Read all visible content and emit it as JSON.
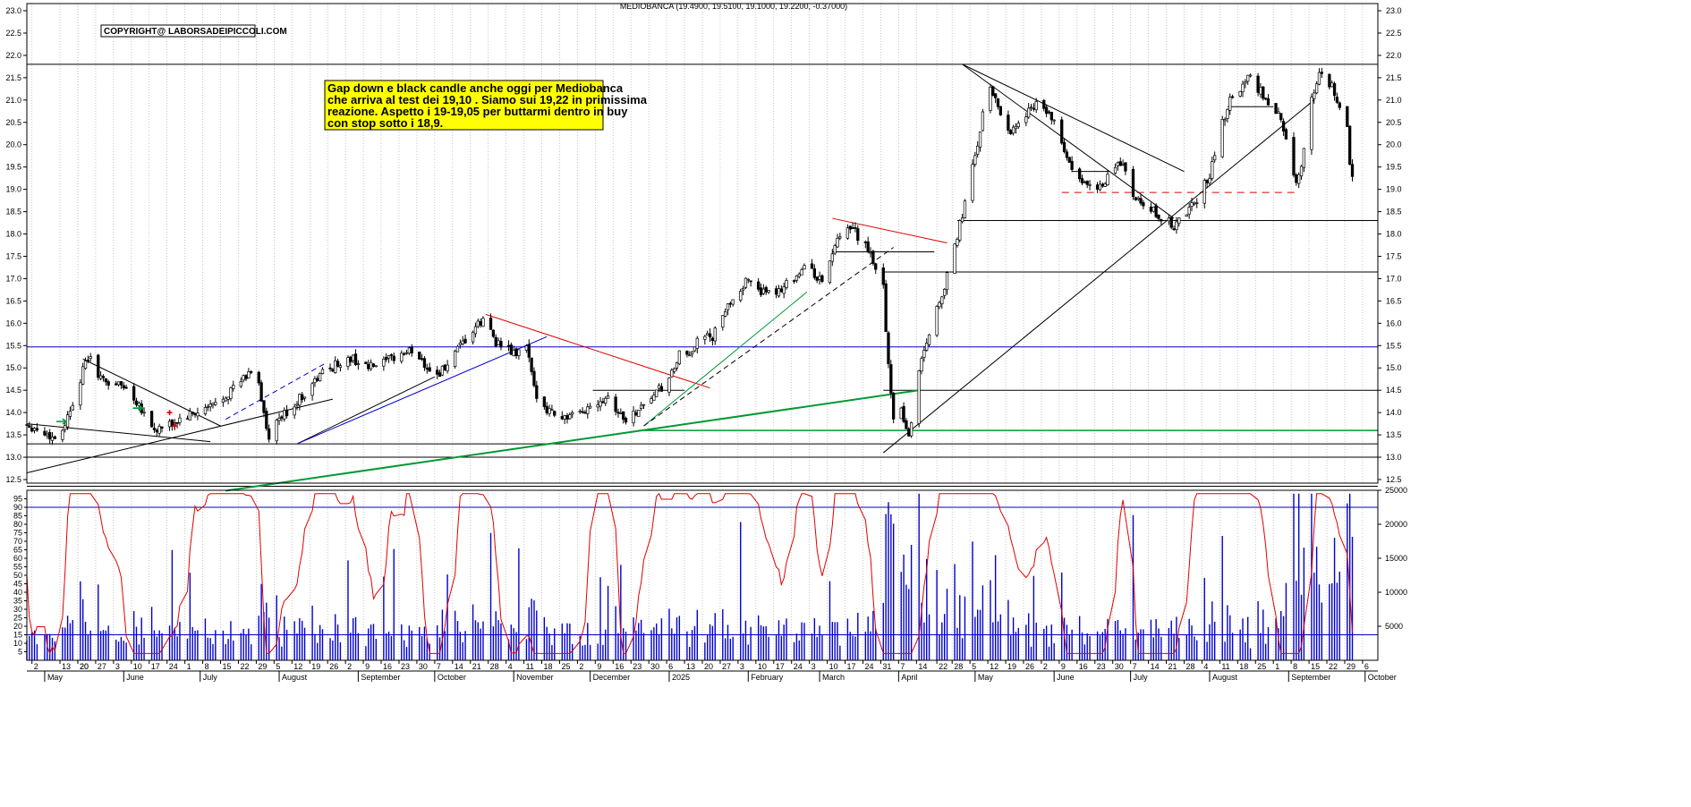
{
  "chart_data": {
    "type": "candlestick",
    "title": "MEDIOBANCA (19.4900, 19.5100, 19.1000, 19.2200, -0.37000)",
    "copyright": "COPYRIGHT@ LABORSADEIPICCOLI.COM",
    "annotation_lines": [
      "Gap down e black candle anche oggi per Mediobanca",
      "che arriva al test dei 19,10 . Siamo sui 19,22 in primissima",
      "reazione. Aspetto i 19-19,05 per buttarmi dentro in buy",
      "con stop sotto i 18,9."
    ],
    "colors": {
      "up": "#ffffff",
      "down": "#000000",
      "oscillator": "#e00000",
      "volume": "#0000cc",
      "support_blue": "#0000cc",
      "support_green": "#009933",
      "note_bg": "#ffff00",
      "resistance_red": "#e00000"
    },
    "price_axis": {
      "min": 12.5,
      "max": 23.0,
      "step": 0.5,
      "ticks": [
        "12.5",
        "13.0",
        "13.5",
        "14.0",
        "14.5",
        "15.0",
        "15.5",
        "16.0",
        "16.5",
        "17.0",
        "17.5",
        "18.0",
        "18.5",
        "19.0",
        "19.5",
        "20.0",
        "20.5",
        "21.0",
        "21.5",
        "22.0",
        "22.5",
        "23.0"
      ]
    },
    "oscillator_axis": {
      "min": 0,
      "max": 100,
      "ticks": [
        "5",
        "10",
        "15",
        "20",
        "25",
        "30",
        "35",
        "40",
        "45",
        "50",
        "55",
        "60",
        "65",
        "70",
        "75",
        "80",
        "85",
        "90",
        "95"
      ]
    },
    "volume_axis": {
      "min": 0,
      "max": 25000,
      "ticks": [
        "5000",
        "10000",
        "15000",
        "20000",
        "25000"
      ]
    },
    "oscillator_levels": [
      90,
      15
    ],
    "months": [
      {
        "label": "May",
        "day": 7
      },
      {
        "label": "June",
        "day": 38
      },
      {
        "label": "July",
        "day": 68
      },
      {
        "label": "August",
        "day": 99
      },
      {
        "label": "September",
        "day": 130
      },
      {
        "label": "October",
        "day": 160
      },
      {
        "label": "November",
        "day": 191
      },
      {
        "label": "December",
        "day": 221
      },
      {
        "label": "2025",
        "day": 252
      },
      {
        "label": "February",
        "day": 283
      },
      {
        "label": "March",
        "day": 311
      },
      {
        "label": "April",
        "day": 342
      },
      {
        "label": "May",
        "day": 372
      },
      {
        "label": "June",
        "day": 403
      },
      {
        "label": "July",
        "day": 433
      },
      {
        "label": "August",
        "day": 464
      },
      {
        "label": "September",
        "day": 495
      },
      {
        "label": "October",
        "day": 525
      }
    ],
    "day_ticks": [
      {
        "label": "2",
        "day": 2
      },
      {
        "label": "20",
        "day": 20
      },
      {
        "label": "13",
        "day": 13
      },
      {
        "label": "20",
        "day": 20
      },
      {
        "label": "27",
        "day": 27
      },
      {
        "label": "3",
        "day": 34
      },
      {
        "label": "10",
        "day": 41
      },
      {
        "label": "17",
        "day": 48
      },
      {
        "label": "24",
        "day": 55
      },
      {
        "label": "1",
        "day": 62
      },
      {
        "label": "8",
        "day": 69
      },
      {
        "label": "15",
        "day": 76
      },
      {
        "label": "22",
        "day": 83
      },
      {
        "label": "29",
        "day": 90
      },
      {
        "label": "5",
        "day": 97
      },
      {
        "label": "12",
        "day": 104
      },
      {
        "label": "19",
        "day": 111
      },
      {
        "label": "26",
        "day": 118
      },
      {
        "label": "2",
        "day": 125
      },
      {
        "label": "9",
        "day": 132
      },
      {
        "label": "16",
        "day": 139
      },
      {
        "label": "23",
        "day": 146
      },
      {
        "label": "30",
        "day": 153
      },
      {
        "label": "7",
        "day": 160
      },
      {
        "label": "14",
        "day": 167
      },
      {
        "label": "21",
        "day": 174
      },
      {
        "label": "28",
        "day": 181
      },
      {
        "label": "4",
        "day": 188
      },
      {
        "label": "11",
        "day": 195
      },
      {
        "label": "18",
        "day": 202
      },
      {
        "label": "25",
        "day": 209
      },
      {
        "label": "2",
        "day": 216
      },
      {
        "label": "9",
        "day": 223
      },
      {
        "label": "16",
        "day": 230
      },
      {
        "label": "23",
        "day": 237
      },
      {
        "label": "30",
        "day": 244
      },
      {
        "label": "6",
        "day": 251
      },
      {
        "label": "13",
        "day": 258
      },
      {
        "label": "20",
        "day": 265
      },
      {
        "label": "27",
        "day": 272
      },
      {
        "label": "3",
        "day": 279
      },
      {
        "label": "10",
        "day": 286
      },
      {
        "label": "17",
        "day": 293
      },
      {
        "label": "24",
        "day": 300
      },
      {
        "label": "3",
        "day": 307
      },
      {
        "label": "10",
        "day": 314
      },
      {
        "label": "17",
        "day": 321
      },
      {
        "label": "24",
        "day": 328
      },
      {
        "label": "31",
        "day": 335
      },
      {
        "label": "7",
        "day": 342
      },
      {
        "label": "14",
        "day": 349
      },
      {
        "label": "22",
        "day": 357
      },
      {
        "label": "28",
        "day": 363
      },
      {
        "label": "5",
        "day": 370
      },
      {
        "label": "12",
        "day": 377
      },
      {
        "label": "19",
        "day": 384
      },
      {
        "label": "26",
        "day": 391
      },
      {
        "label": "2",
        "day": 398
      },
      {
        "label": "9",
        "day": 405
      },
      {
        "label": "16",
        "day": 412
      },
      {
        "label": "23",
        "day": 419
      },
      {
        "label": "30",
        "day": 426
      },
      {
        "label": "7",
        "day": 433
      },
      {
        "label": "14",
        "day": 440
      },
      {
        "label": "21",
        "day": 447
      },
      {
        "label": "28",
        "day": 454
      },
      {
        "label": "4",
        "day": 461
      },
      {
        "label": "11",
        "day": 468
      },
      {
        "label": "18",
        "day": 475
      },
      {
        "label": "25",
        "day": 482
      },
      {
        "label": "1",
        "day": 489
      },
      {
        "label": "8",
        "day": 496
      },
      {
        "label": "15",
        "day": 503
      },
      {
        "label": "22",
        "day": 510
      },
      {
        "label": "29",
        "day": 517
      },
      {
        "label": "6",
        "day": 524
      }
    ],
    "day_range": [
      0,
      530
    ],
    "anchors": [
      [
        0,
        13.75
      ],
      [
        8,
        13.5
      ],
      [
        12,
        13.4
      ],
      [
        16,
        13.9
      ],
      [
        20,
        14.6
      ],
      [
        24,
        15.25
      ],
      [
        30,
        14.7
      ],
      [
        38,
        14.6
      ],
      [
        44,
        14.2
      ],
      [
        50,
        13.6
      ],
      [
        56,
        13.7
      ],
      [
        62,
        13.9
      ],
      [
        68,
        14.0
      ],
      [
        74,
        14.2
      ],
      [
        80,
        14.5
      ],
      [
        86,
        14.8
      ],
      [
        90,
        15.1
      ],
      [
        92,
        14.3
      ],
      [
        95,
        13.3
      ],
      [
        98,
        13.8
      ],
      [
        102,
        14.0
      ],
      [
        110,
        14.5
      ],
      [
        116,
        14.9
      ],
      [
        122,
        15.1
      ],
      [
        128,
        15.2
      ],
      [
        134,
        15.0
      ],
      [
        140,
        15.1
      ],
      [
        146,
        15.3
      ],
      [
        152,
        15.4
      ],
      [
        156,
        15.1
      ],
      [
        160,
        14.8
      ],
      [
        164,
        15.0
      ],
      [
        168,
        15.3
      ],
      [
        172,
        15.6
      ],
      [
        176,
        15.9
      ],
      [
        180,
        16.1
      ],
      [
        184,
        15.6
      ],
      [
        188,
        15.4
      ],
      [
        192,
        15.3
      ],
      [
        196,
        15.5
      ],
      [
        199,
        14.5
      ],
      [
        204,
        14.1
      ],
      [
        210,
        13.9
      ],
      [
        216,
        13.9
      ],
      [
        222,
        14.2
      ],
      [
        228,
        14.4
      ],
      [
        232,
        14.0
      ],
      [
        236,
        13.8
      ],
      [
        240,
        14.1
      ],
      [
        246,
        14.4
      ],
      [
        252,
        14.7
      ],
      [
        256,
        15.3
      ],
      [
        260,
        15.2
      ],
      [
        264,
        15.9
      ],
      [
        268,
        15.6
      ],
      [
        272,
        16.0
      ],
      [
        276,
        16.5
      ],
      [
        280,
        16.8
      ],
      [
        284,
        17.0
      ],
      [
        290,
        16.6
      ],
      [
        296,
        16.8
      ],
      [
        300,
        17.0
      ],
      [
        306,
        17.3
      ],
      [
        312,
        16.9
      ],
      [
        316,
        17.6
      ],
      [
        320,
        18.0
      ],
      [
        324,
        18.1
      ],
      [
        328,
        17.8
      ],
      [
        332,
        17.4
      ],
      [
        336,
        16.8
      ],
      [
        338,
        15.0
      ],
      [
        340,
        13.9
      ],
      [
        342,
        14.6
      ],
      [
        344,
        13.8
      ],
      [
        346,
        13.5
      ],
      [
        348,
        14.0
      ],
      [
        350,
        15.0
      ],
      [
        354,
        15.8
      ],
      [
        358,
        16.5
      ],
      [
        362,
        17.2
      ],
      [
        366,
        18.2
      ],
      [
        370,
        19.2
      ],
      [
        374,
        20.3
      ],
      [
        377,
        21.4
      ],
      [
        381,
        20.9
      ],
      [
        385,
        20.3
      ],
      [
        390,
        20.5
      ],
      [
        396,
        21.0
      ],
      [
        402,
        20.6
      ],
      [
        406,
        20.0
      ],
      [
        410,
        19.4
      ],
      [
        414,
        19.1
      ],
      [
        418,
        19.2
      ],
      [
        422,
        19.0
      ],
      [
        426,
        19.5
      ],
      [
        430,
        19.6
      ],
      [
        432,
        19.3
      ],
      [
        434,
        18.8
      ],
      [
        438,
        18.6
      ],
      [
        442,
        18.5
      ],
      [
        446,
        18.3
      ],
      [
        450,
        18.2
      ],
      [
        454,
        18.4
      ],
      [
        458,
        18.7
      ],
      [
        460,
        18.9
      ],
      [
        464,
        19.3
      ],
      [
        468,
        20.3
      ],
      [
        472,
        21.0
      ],
      [
        476,
        21.3
      ],
      [
        480,
        21.5
      ],
      [
        484,
        21.2
      ],
      [
        488,
        20.8
      ],
      [
        492,
        20.6
      ],
      [
        496,
        19.6
      ],
      [
        498,
        19.2
      ],
      [
        500,
        19.5
      ],
      [
        502,
        20.5
      ],
      [
        505,
        21.2
      ],
      [
        508,
        21.7
      ],
      [
        512,
        21.3
      ],
      [
        515,
        20.8
      ],
      [
        518,
        20.3
      ],
      [
        519,
        19.6
      ],
      [
        520,
        19.22
      ]
    ],
    "horizontal_lines": [
      {
        "price": 21.8,
        "color": "#000000",
        "from": 0,
        "to": 530,
        "width": 1
      },
      {
        "price": 18.3,
        "color": "#000000",
        "from": 365,
        "to": 530,
        "width": 1
      },
      {
        "price": 17.15,
        "color": "#000000",
        "from": 336,
        "to": 530,
        "width": 1
      },
      {
        "price": 15.47,
        "color": "#0000cc",
        "from": 0,
        "to": 530,
        "width": 1
      },
      {
        "price": 14.5,
        "color": "#000000",
        "from": 336,
        "to": 530,
        "width": 1
      },
      {
        "price": 13.6,
        "color": "#009933",
        "from": 240,
        "to": 530,
        "width": 1.5
      },
      {
        "price": 13.3,
        "color": "#000000",
        "from": 0,
        "to": 530,
        "width": 1
      },
      {
        "price": 13.0,
        "color": "#000000",
        "from": 0,
        "to": 530,
        "width": 1
      },
      {
        "price": 12.35,
        "color": "#000000",
        "from": 0,
        "to": 530,
        "width": 1
      },
      {
        "price": 14.5,
        "color": "#000000",
        "from": 222,
        "to": 258,
        "width": 1
      },
      {
        "price": 17.6,
        "color": "#000000",
        "from": 316,
        "to": 356,
        "width": 1
      },
      {
        "price": 19.4,
        "color": "#000000",
        "from": 410,
        "to": 425,
        "width": 1
      },
      {
        "price": 20.85,
        "color": "#000000",
        "from": 471,
        "to": 489,
        "width": 1
      },
      {
        "price": 18.93,
        "color": "#e00000",
        "from": 406,
        "to": 498,
        "width": 1,
        "dash": "8,6"
      }
    ],
    "trend_lines": [
      {
        "from": [
          0,
          12.65
        ],
        "to": [
          120,
          14.3
        ],
        "color": "#000000",
        "width": 1
      },
      {
        "from": [
          0,
          13.75
        ],
        "to": [
          72,
          13.35
        ],
        "color": "#000000",
        "width": 1
      },
      {
        "from": [
          22,
          15.2
        ],
        "to": [
          76,
          13.7
        ],
        "color": "#000000",
        "width": 1
      },
      {
        "from": [
          78,
          13.85
        ],
        "to": [
          117,
          15.1
        ],
        "color": "#0000cc",
        "width": 1,
        "dash": "6,4"
      },
      {
        "from": [
          106,
          13.3
        ],
        "to": [
          160,
          14.8
        ],
        "color": "#000000",
        "width": 1
      },
      {
        "from": [
          106,
          13.3
        ],
        "to": [
          204,
          15.7
        ],
        "color": "#0000cc",
        "width": 1
      },
      {
        "from": [
          78,
          12.25
        ],
        "to": [
          350,
          14.5
        ],
        "color": "#009933",
        "width": 2
      },
      {
        "from": [
          180,
          16.2
        ],
        "to": [
          268,
          14.55
        ],
        "color": "#e00000",
        "width": 1
      },
      {
        "from": [
          242,
          13.7
        ],
        "to": [
          306,
          16.7
        ],
        "color": "#009933",
        "width": 1
      },
      {
        "from": [
          242,
          13.7
        ],
        "to": [
          340,
          17.7
        ],
        "color": "#000000",
        "width": 1,
        "dash": "6,4"
      },
      {
        "from": [
          316,
          18.35
        ],
        "to": [
          361,
          17.8
        ],
        "color": "#e00000",
        "width": 1
      },
      {
        "from": [
          336,
          13.1
        ],
        "to": [
          505,
          21.0
        ],
        "color": "#000000",
        "width": 1
      },
      {
        "from": [
          367,
          21.8
        ],
        "to": [
          450,
          18.35
        ],
        "color": "#000000",
        "width": 1
      },
      {
        "from": [
          367,
          21.8
        ],
        "to": [
          454,
          19.4
        ],
        "color": "#000000",
        "width": 1
      }
    ],
    "markers": [
      {
        "type": "arrow",
        "day": 14,
        "price": 13.8,
        "color": "#009933"
      },
      {
        "type": "arrow",
        "day": 44,
        "price": 14.1,
        "color": "#009933"
      },
      {
        "type": "cross",
        "day": 56,
        "price": 14.0,
        "color": "#e00000"
      },
      {
        "type": "cross",
        "day": 58,
        "price": 13.7,
        "color": "#e00000"
      }
    ]
  }
}
